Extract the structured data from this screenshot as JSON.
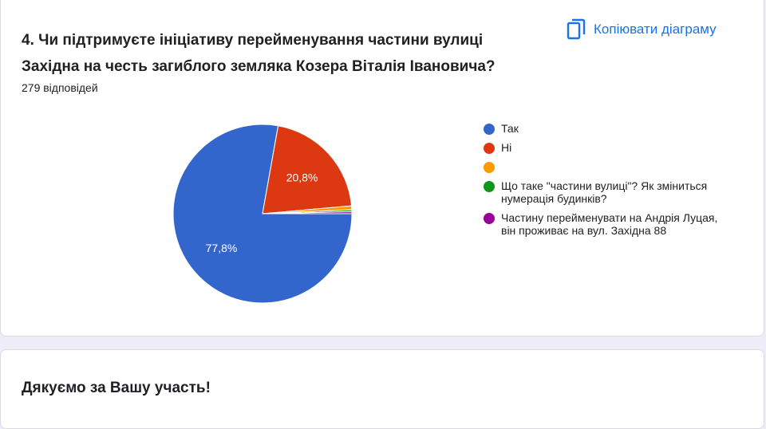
{
  "question": {
    "title": "4. Чи підтримуєте ініціативу перейменування частини вулиці Західна на честь загиблого земляка Козера Віталія Івановича?",
    "responses": "279 відповідей",
    "copy_label": "Копіювати діаграму",
    "copy_icon": "copy-icon"
  },
  "chart_data": {
    "type": "pie",
    "slices": [
      {
        "label": "Так",
        "value": 77.8,
        "display": "77,8%",
        "color": "#3366cc"
      },
      {
        "label": "Ні",
        "value": 20.8,
        "display": "20,8%",
        "color": "#dc3912"
      },
      {
        "label": "",
        "value": 0.7,
        "display": "",
        "color": "#ff9900"
      },
      {
        "label": "Що таке \"частини вулиці\"? Як зміниться нумерація будинків?",
        "value": 0.35,
        "display": "",
        "color": "#109618"
      },
      {
        "label": "Частину перейменувати на Андрія Луцая, він проживає на вул. Західна 88",
        "value": 0.35,
        "display": "",
        "color": "#990099"
      }
    ],
    "legend_position": "right"
  },
  "footer": {
    "thanks": "Дякуємо за Вашу участь!"
  }
}
